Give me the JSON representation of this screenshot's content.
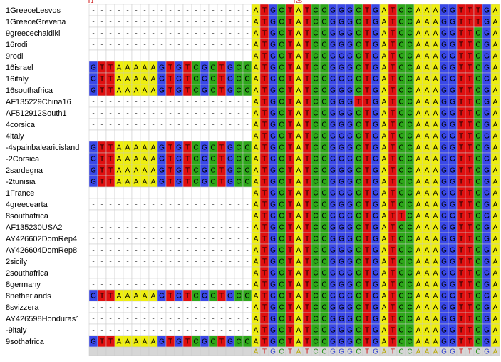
{
  "ruler_top": [
    "1",
    "25"
  ],
  "rows": [
    {
      "name": "1GreeceLesvos",
      "sequence": "-------------------ATGCTATCCGGGCTGATCCAAAGGTTTGA"
    },
    {
      "name": "1GreeceGrevena",
      "sequence": "-------------------ATGCTATCCGGGCTGATCCAAAGGTTTGA"
    },
    {
      "name": "9greecechaldiki",
      "sequence": "-------------------ATGCTATCCGGGCTGATCCAAAGGTTCGA"
    },
    {
      "name": "16rodi",
      "sequence": "-------------------ATGCTATCCGGGCTGATCCAAAGGTTCGA"
    },
    {
      "name": "9rodi",
      "sequence": "-------------------ATGCTATCCGGGCTGATCCAAAGGTTCGA"
    },
    {
      "name": "16israel",
      "sequence": "GTTAAAAAGTGTCGCTGCCATGCTATCCGGGCTGATCCAAAGGTTCGA"
    },
    {
      "name": "16italy",
      "sequence": "GTTAAAAAGTGTCGCTGCCATGCTATCCGGGCTGATCCAAAGGTTCGA"
    },
    {
      "name": "16southafrica",
      "sequence": "GTTAAAAAGTGTCGCTGCCATGCTATCCGGGCTGATCCAAAGGTTCGA"
    },
    {
      "name": "AF135229China16",
      "sequence": "-------------------ATGCTATCCGGGTTGATCCAAAGGTTCGA"
    },
    {
      "name": "AF512912South1",
      "sequence": "-------------------ATGCTATCCGGGCTGATCCAAAGGTTCGA"
    },
    {
      "name": "4corsica",
      "sequence": "-------------------ATGCTATCCGGGCTGATCCAAAGGTTCGA"
    },
    {
      "name": "4italy",
      "sequence": "-------------------ATGCTATCCGGGCTGATCCAAAGGTTCGA"
    },
    {
      "name": "-4spainbalearicisland",
      "sequence": "GTTAAAAAGTGTCGCTGCCATGCTATCCGGGCTGATCCAAAGGTTCGA"
    },
    {
      "name": "-2Corsica",
      "sequence": "GTTAAAAAGTGTCGCTGCCATGCTATCCGGGCTGATCCAAAGGTTCGA"
    },
    {
      "name": "2sardegna",
      "sequence": "GTTAAAAAGTGTCGCTGCCATGCTATCCGGGCTGATCCAAAGGTTCGA"
    },
    {
      "name": "-2tunisia",
      "sequence": "GTTAAAAAGTGTCGCTGCCATGCTATCCGGGCTGATCCAAAGGTTCGA"
    },
    {
      "name": "1France",
      "sequence": "-------------------ATGCTATCCGGGCTGATCCAAAGGTTCGA"
    },
    {
      "name": "4greecearta",
      "sequence": "-------------------ATGCTATCCGGGCTGATCCAAAGGTTCGA"
    },
    {
      "name": "8southafrica",
      "sequence": "-------------------ATGCTATCCGGGCTGATTCAAAGGTTCGA"
    },
    {
      "name": "AF135230USA2",
      "sequence": "-------------------ATGCTATCCGGGCTGATCCAAAGGTTCGA"
    },
    {
      "name": "AY426602DomRep4",
      "sequence": "-------------------ATGCTATCCGGGCTGATCCAAAGGTTCGA"
    },
    {
      "name": "AY426604DomRep8",
      "sequence": "-------------------ATGCTATCCGGGCTGATCCAAAGGTTCGA"
    },
    {
      "name": "2sicily",
      "sequence": "-------------------ATGCTATCCGGGCTGATCCAAAGGTTCGA"
    },
    {
      "name": "2southafrica",
      "sequence": "-------------------ATGCTATCCGGGCTGATCCAAAGGTTCGA"
    },
    {
      "name": "8germany",
      "sequence": "-------------------ATGCTATCCGGGCTGATCCAAAGGTTCGA"
    },
    {
      "name": "8netherlands",
      "sequence": "GTTAAAAAGTGTCGCTGCCATGCTATCCGGGCTGATCCAAAGGTTCGA"
    },
    {
      "name": "8svizzera",
      "sequence": "-------------------ATGCTATCCGGGCTGATCCAAAGGTTCGA"
    },
    {
      "name": "AY426598Honduras1",
      "sequence": "-------------------ATGCTATCCGGGCTGATCCAAAGGTTCGA"
    },
    {
      "name": "-9italy",
      "sequence": "-------------------ATGCTATCCGGGCTGATCCAAAGGTTCGA"
    },
    {
      "name": "9sothafrica",
      "sequence": "GTTAAAAAGTGTCGCTGCCATGCTATCCGGGCTGATCCAAAGGTTCGA"
    }
  ],
  "consensus": "                   ATGCTATCCGGGCTGATCCAAAGGTTCGA"
}
